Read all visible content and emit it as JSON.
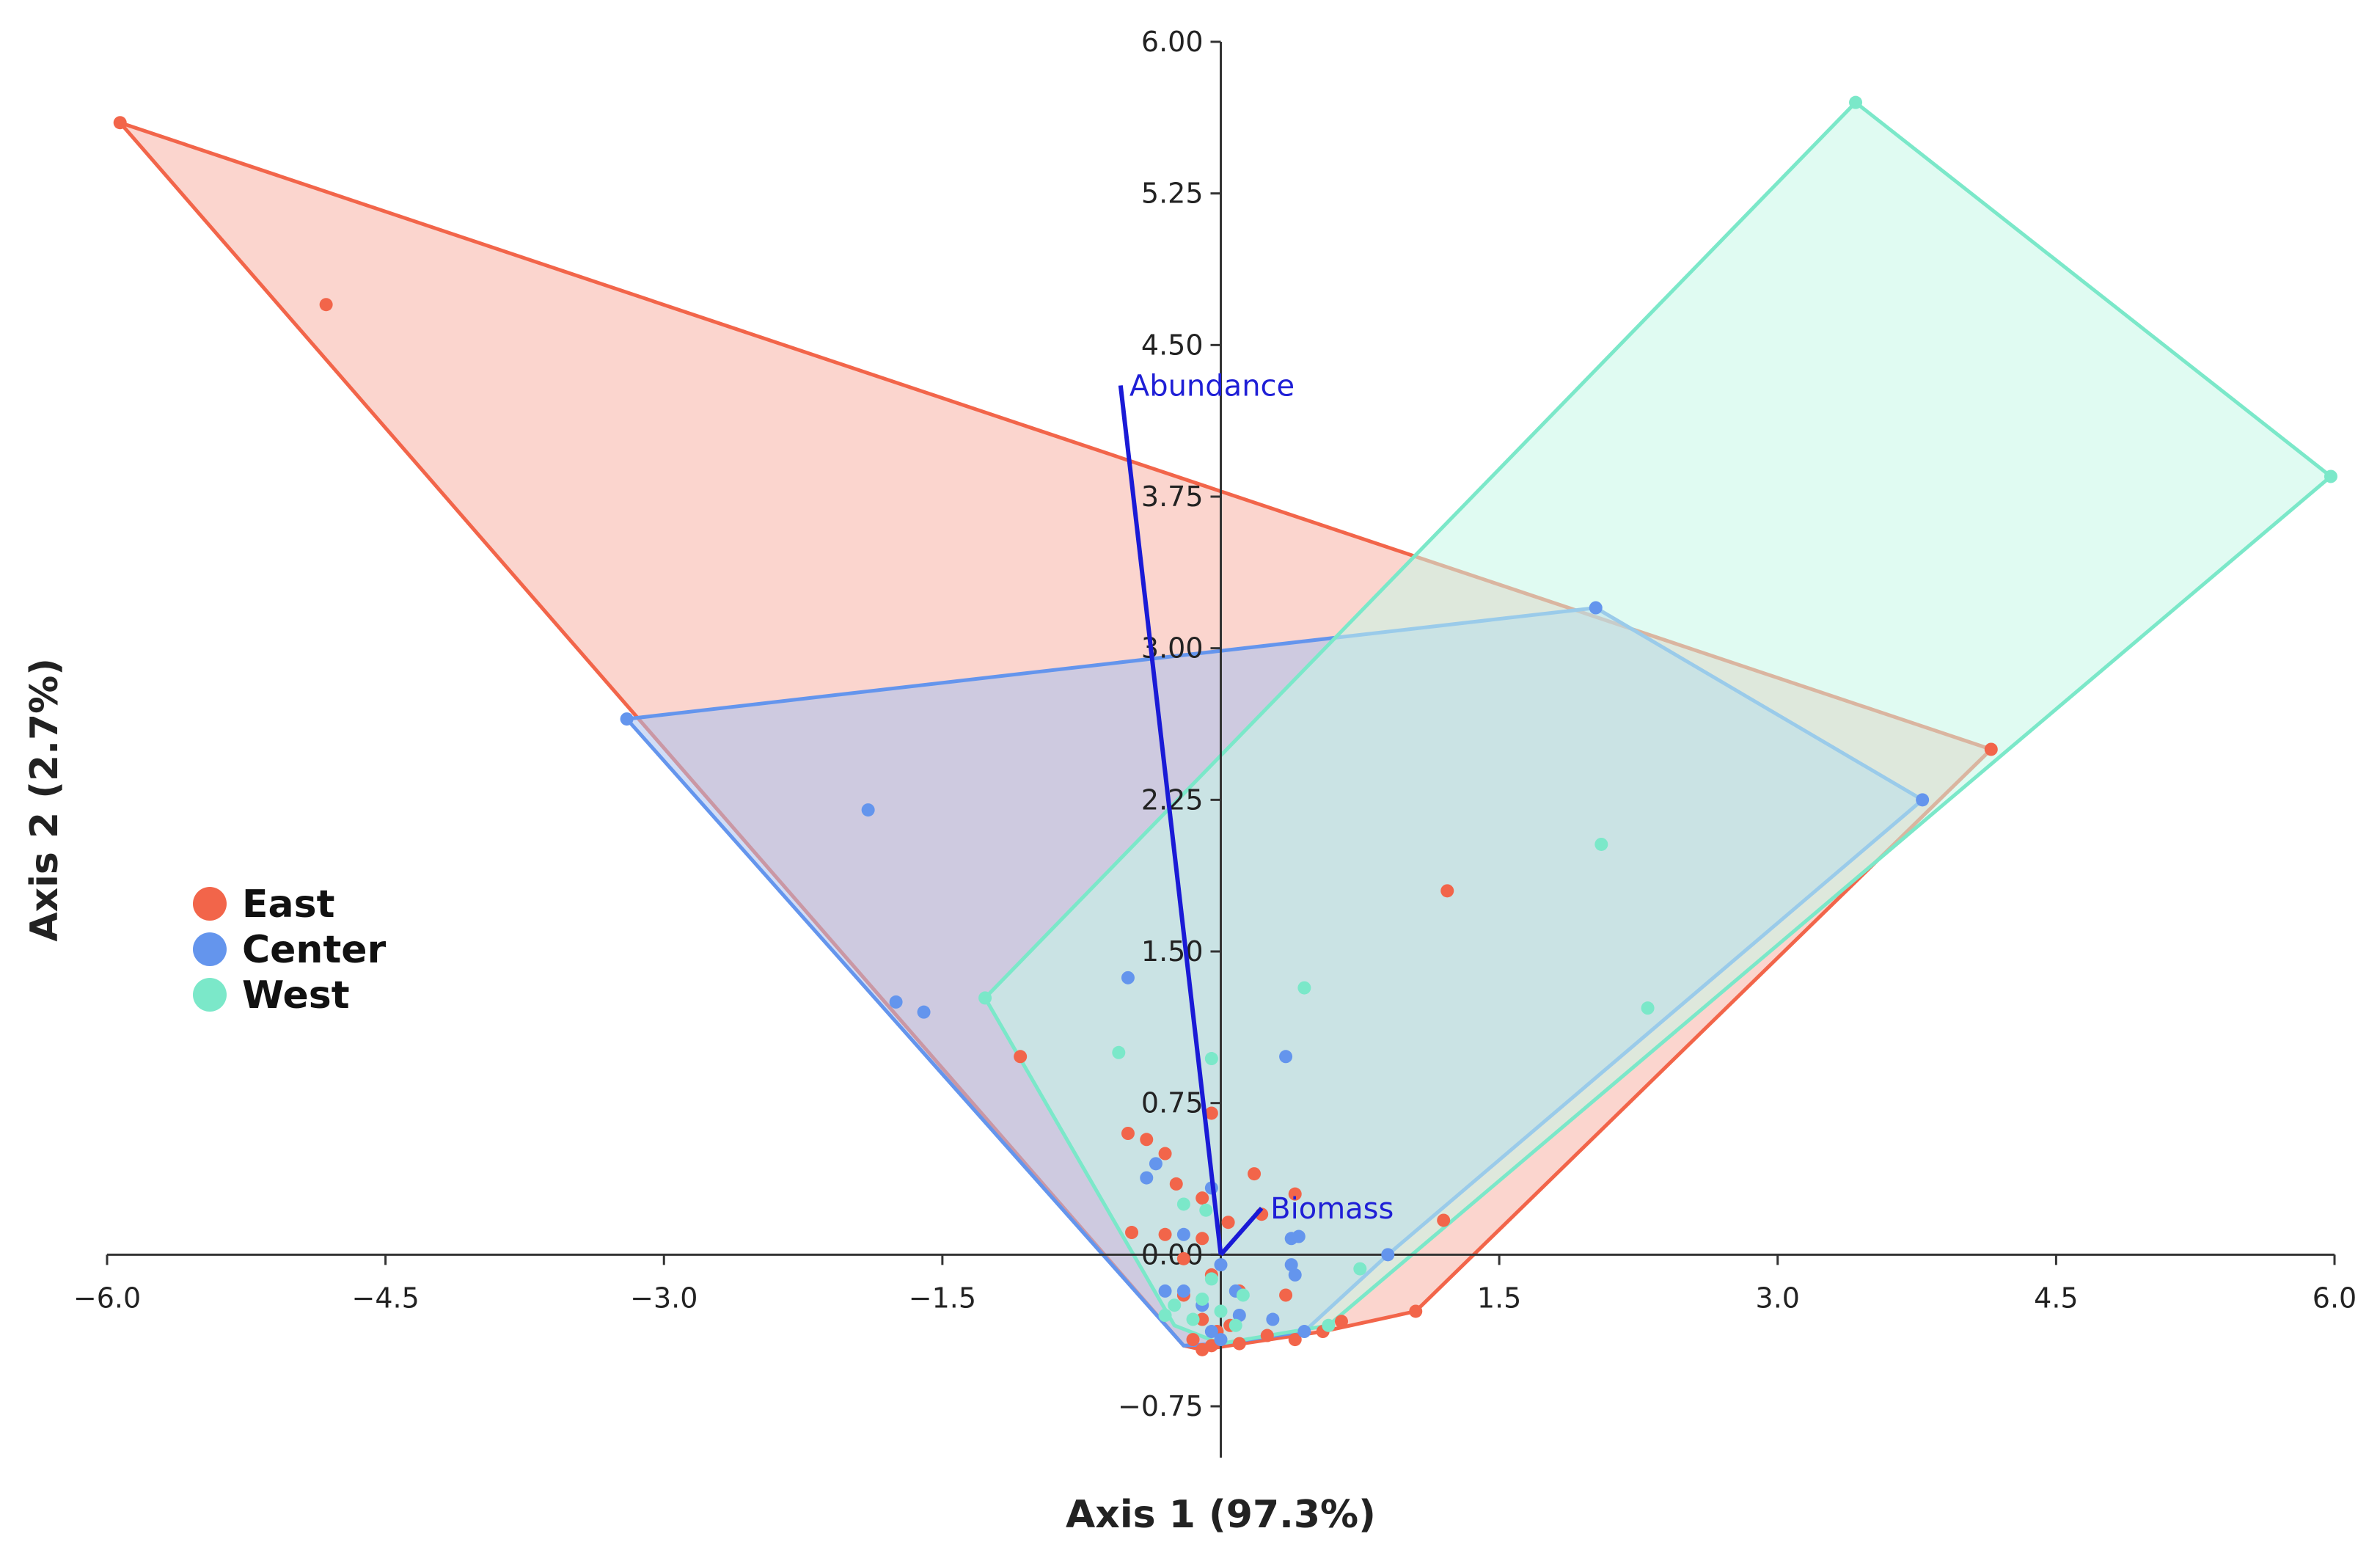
{
  "chart_data": {
    "type": "scatter",
    "title": "",
    "xlabel": "Axis 1 (97.3%)",
    "ylabel": "Axis 2 (2.7%)",
    "xlim": [
      -6.0,
      6.0
    ],
    "ylim": [
      -0.75,
      6.0
    ],
    "x_ticks": [
      "−6.0",
      "−4.5",
      "−3.0",
      "−1.5",
      "",
      "1.5",
      "3.0",
      "4.5",
      "6.0"
    ],
    "x_tick_values": [
      -6.0,
      -4.5,
      -3.0,
      -1.5,
      0,
      1.5,
      3.0,
      4.5,
      6.0
    ],
    "y_ticks": [
      "−0.75",
      "0.00",
      "0.75",
      "1.50",
      "2.25",
      "3.00",
      "3.75",
      "4.50",
      "5.25",
      "6.00"
    ],
    "y_tick_values": [
      -0.75,
      0.0,
      0.75,
      1.5,
      2.25,
      3.0,
      3.75,
      4.5,
      5.25,
      6.0
    ],
    "grid": false,
    "legend_position": "left-middle",
    "series": [
      {
        "name": "East",
        "color": "#f2654a",
        "fill": "#f8b3a6",
        "points": [
          [
            -5.93,
            5.6
          ],
          [
            -4.82,
            4.7
          ],
          [
            4.15,
            2.5
          ],
          [
            1.22,
            1.8
          ],
          [
            -1.08,
            0.98
          ],
          [
            -0.05,
            0.7
          ],
          [
            -0.5,
            0.6
          ],
          [
            -0.4,
            0.57
          ],
          [
            -0.3,
            0.5
          ],
          [
            -0.24,
            0.35
          ],
          [
            0.18,
            0.4
          ],
          [
            -0.1,
            0.28
          ],
          [
            0.4,
            0.3
          ],
          [
            0.22,
            0.2
          ],
          [
            0.04,
            0.16
          ],
          [
            1.2,
            0.17
          ],
          [
            -0.48,
            0.11
          ],
          [
            -0.3,
            0.1
          ],
          [
            -0.1,
            0.08
          ],
          [
            -0.2,
            -0.02
          ],
          [
            -0.05,
            -0.1
          ],
          [
            0.1,
            -0.18
          ],
          [
            -0.2,
            -0.2
          ],
          [
            0.35,
            -0.2
          ],
          [
            -0.1,
            -0.32
          ],
          [
            0.05,
            -0.35
          ],
          [
            0.25,
            -0.4
          ],
          [
            -0.15,
            -0.42
          ],
          [
            0.65,
            -0.33
          ],
          [
            1.05,
            -0.28
          ],
          [
            0.55,
            -0.38
          ],
          [
            -0.05,
            -0.45
          ],
          [
            -0.1,
            -0.47
          ],
          [
            0.4,
            -0.42
          ],
          [
            0.1,
            -0.44
          ],
          [
            -0.02,
            -0.38
          ]
        ],
        "hull": [
          [
            -5.93,
            5.6
          ],
          [
            4.15,
            2.5
          ],
          [
            1.05,
            -0.28
          ],
          [
            0.55,
            -0.38
          ],
          [
            -0.1,
            -0.47
          ],
          [
            -0.2,
            -0.45
          ]
        ]
      },
      {
        "name": "Center",
        "color": "#6495ed",
        "fill": "#a9c1ef",
        "points": [
          [
            -3.2,
            2.65
          ],
          [
            2.02,
            3.2
          ],
          [
            3.78,
            2.25
          ],
          [
            -1.9,
            2.2
          ],
          [
            -1.75,
            1.25
          ],
          [
            -1.6,
            1.2
          ],
          [
            -0.5,
            1.37
          ],
          [
            0.35,
            0.98
          ],
          [
            -0.4,
            0.38
          ],
          [
            -0.35,
            0.45
          ],
          [
            -0.05,
            0.33
          ],
          [
            0.38,
            0.08
          ],
          [
            0.42,
            0.09
          ],
          [
            0.9,
            0.0
          ],
          [
            -0.2,
            0.1
          ],
          [
            0.0,
            -0.05
          ],
          [
            0.38,
            -0.05
          ],
          [
            0.4,
            -0.1
          ],
          [
            -0.2,
            -0.18
          ],
          [
            0.08,
            -0.18
          ],
          [
            0.45,
            -0.38
          ],
          [
            -0.3,
            -0.18
          ],
          [
            -0.1,
            -0.25
          ],
          [
            0.1,
            -0.3
          ],
          [
            0.28,
            -0.32
          ],
          [
            -0.05,
            -0.38
          ],
          [
            0.0,
            -0.42
          ]
        ],
        "hull": [
          [
            -3.2,
            2.65
          ],
          [
            2.02,
            3.2
          ],
          [
            3.78,
            2.25
          ],
          [
            0.9,
            0.0
          ],
          [
            0.45,
            -0.38
          ],
          [
            0.0,
            -0.44
          ],
          [
            -0.2,
            -0.45
          ]
        ]
      },
      {
        "name": "West",
        "color": "#7be8c9",
        "fill": "#c7f7e7",
        "points": [
          [
            3.42,
            5.7
          ],
          [
            5.98,
            3.85
          ],
          [
            2.05,
            2.03
          ],
          [
            2.3,
            1.22
          ],
          [
            -1.27,
            1.27
          ],
          [
            0.45,
            1.32
          ],
          [
            -0.55,
            1.0
          ],
          [
            -0.05,
            0.97
          ],
          [
            -0.2,
            0.25
          ],
          [
            -0.08,
            0.22
          ],
          [
            0.75,
            -0.07
          ],
          [
            0.58,
            -0.35
          ],
          [
            -0.25,
            -0.25
          ],
          [
            -0.1,
            -0.22
          ],
          [
            -0.3,
            -0.3
          ],
          [
            0.0,
            -0.28
          ],
          [
            0.12,
            -0.2
          ],
          [
            -0.05,
            -0.12
          ],
          [
            0.08,
            -0.35
          ],
          [
            -0.15,
            -0.32
          ]
        ],
        "hull": [
          [
            3.42,
            5.7
          ],
          [
            5.98,
            3.85
          ],
          [
            0.58,
            -0.35
          ],
          [
            0.0,
            -0.44
          ],
          [
            -0.25,
            -0.35
          ],
          [
            -1.27,
            1.27
          ]
        ]
      }
    ],
    "vectors": [
      {
        "name": "Abundance",
        "x": -0.54,
        "y": 4.3
      },
      {
        "name": "Biomass",
        "x": 0.22,
        "y": 0.23
      }
    ],
    "vector_color": "#1a1ad6"
  }
}
